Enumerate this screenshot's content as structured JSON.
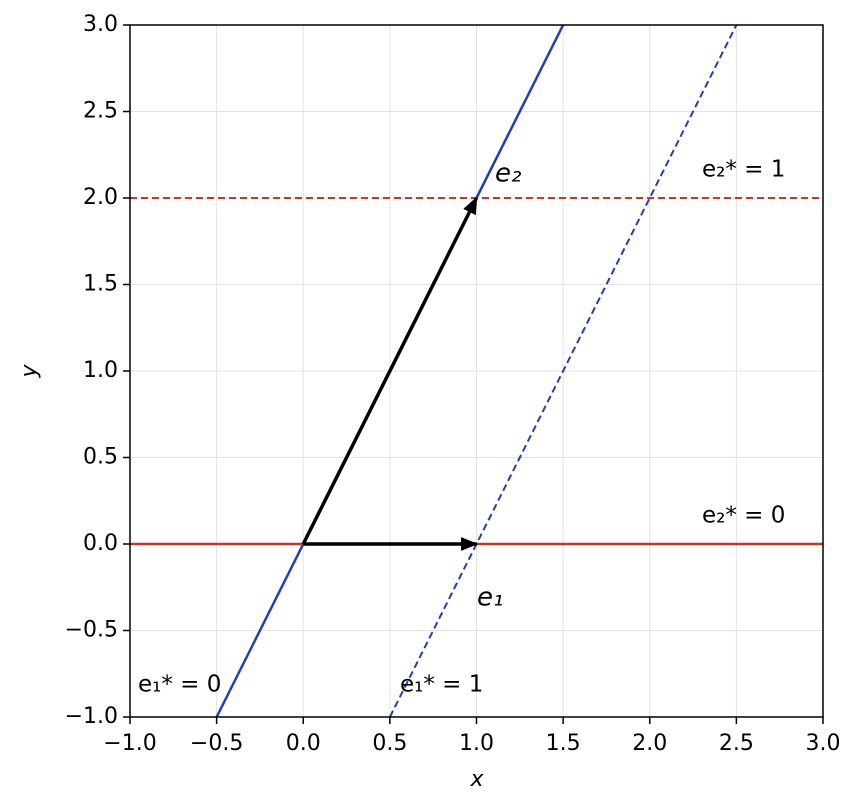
{
  "chart_data": {
    "type": "line",
    "x_label": "x",
    "y_label": "y",
    "xlim": [
      -1,
      3
    ],
    "ylim": [
      -1,
      3
    ],
    "xticks": [
      {
        "value": -1,
        "label": "−1.0"
      },
      {
        "value": -0.5,
        "label": "−0.5"
      },
      {
        "value": 0,
        "label": "0.0"
      },
      0.5,
      {
        "value": 1,
        "label": "1.0"
      },
      1.5,
      {
        "value": 2,
        "label": "2.0"
      },
      2.5,
      {
        "value": 3,
        "label": "3.0"
      }
    ],
    "yticks": [
      {
        "value": -1,
        "label": "−1.0"
      },
      {
        "value": -0.5,
        "label": "−0.5"
      },
      {
        "value": 0,
        "label": "0.0"
      },
      0.5,
      {
        "value": 1,
        "label": "1.0"
      },
      1.5,
      {
        "value": 2,
        "label": "2.0"
      },
      2.5,
      {
        "value": 3,
        "label": "3.0"
      }
    ],
    "grid": true,
    "series": [
      {
        "name": "e₁* = 0",
        "color": "#1f3fb5",
        "dashed": false,
        "x": [
          -0.5,
          1.5
        ],
        "values": [
          -1,
          3
        ]
      },
      {
        "name": "e₁* = 1",
        "color": "#1f3fb5",
        "dashed": true,
        "x": [
          0.5,
          2.5
        ],
        "values": [
          -1,
          3
        ]
      },
      {
        "name": "e₂* = 0",
        "color": "#c0392b",
        "dashed": false,
        "x": [
          -1,
          3
        ],
        "values": [
          0,
          0
        ]
      },
      {
        "name": "e₂* = 1",
        "color": "#c0392b",
        "dashed": true,
        "x": [
          -1,
          3
        ],
        "values": [
          2,
          2
        ]
      }
    ],
    "vectors": [
      {
        "name": "e₁",
        "color": "#000000",
        "x": [
          0,
          1
        ],
        "values": [
          0,
          0
        ]
      },
      {
        "name": "e₂",
        "color": "#000000",
        "x": [
          0,
          1
        ],
        "values": [
          0,
          2
        ]
      }
    ]
  }
}
